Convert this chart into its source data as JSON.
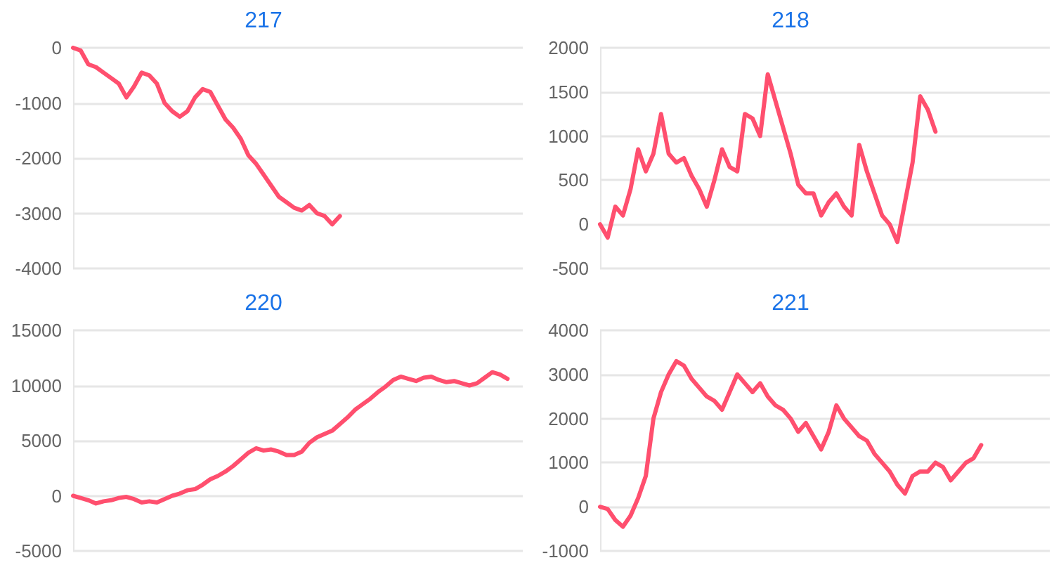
{
  "chart_data": [
    {
      "type": "line",
      "title": "217",
      "categories": [
        null,
        null,
        null,
        null,
        null,
        null,
        null,
        null,
        null,
        null,
        null,
        null,
        null,
        null,
        null,
        null,
        null,
        null,
        null,
        null,
        null,
        null,
        null,
        null,
        null,
        null,
        null,
        null,
        null,
        null,
        null,
        null,
        null,
        null,
        null,
        null,
        null,
        null,
        null,
        null,
        null,
        null,
        null,
        null,
        null,
        null,
        null,
        null,
        null,
        null,
        null,
        null,
        null,
        null,
        null,
        null,
        null,
        null,
        null,
        null
      ],
      "series": [
        {
          "color": "#ff4f6e",
          "values": [
            0,
            -50,
            -300,
            -350,
            -450,
            -550,
            -650,
            -900,
            -700,
            -450,
            -500,
            -650,
            -1000,
            -1150,
            -1250,
            -1150,
            -900,
            -750,
            -800,
            -1050,
            -1300,
            -1450,
            -1650,
            -1950,
            -2100,
            -2300,
            -2500,
            -2700,
            -2800,
            -2900,
            -2950,
            -2850,
            -3000,
            -3050,
            -3200,
            -3050,
            null,
            null,
            null,
            null,
            null,
            null,
            null,
            null,
            null,
            null,
            null,
            null,
            null,
            null,
            null,
            null,
            null,
            null,
            null,
            null,
            null,
            null,
            null,
            null
          ]
        }
      ],
      "ylim": [
        -4000,
        0
      ],
      "yticks": [
        -4000,
        -3000,
        -2000,
        -1000,
        0
      ],
      "grid": "y",
      "marker": "none",
      "line_style": "solid"
    },
    {
      "type": "line",
      "title": "218",
      "categories": [
        null,
        null,
        null,
        null,
        null,
        null,
        null,
        null,
        null,
        null,
        null,
        null,
        null,
        null,
        null,
        null,
        null,
        null,
        null,
        null,
        null,
        null,
        null,
        null,
        null,
        null,
        null,
        null,
        null,
        null,
        null,
        null,
        null,
        null,
        null,
        null,
        null,
        null,
        null,
        null,
        null,
        null,
        null,
        null,
        null,
        null,
        null,
        null,
        null,
        null,
        null,
        null,
        null,
        null,
        null,
        null,
        null,
        null,
        null,
        null
      ],
      "series": [
        {
          "color": "#ff4f6e",
          "values": [
            0,
            -150,
            200,
            100,
            400,
            850,
            600,
            800,
            1250,
            800,
            700,
            750,
            550,
            400,
            200,
            500,
            850,
            650,
            600,
            1250,
            1200,
            1000,
            1700,
            1400,
            1100,
            800,
            450,
            350,
            350,
            100,
            250,
            350,
            200,
            100,
            900,
            600,
            350,
            100,
            0,
            -200,
            250,
            700,
            1450,
            1300,
            1050,
            null,
            null,
            null,
            null,
            null,
            null,
            null,
            null,
            null,
            null,
            null,
            null,
            null,
            null,
            null
          ]
        }
      ],
      "ylim": [
        -500,
        2000
      ],
      "yticks": [
        -500,
        0,
        500,
        1000,
        1500,
        2000
      ],
      "grid": "y",
      "marker": "none",
      "line_style": "solid"
    },
    {
      "type": "line",
      "title": "220",
      "categories": [
        null,
        null,
        null,
        null,
        null,
        null,
        null,
        null,
        null,
        null,
        null,
        null,
        null,
        null,
        null,
        null,
        null,
        null,
        null,
        null,
        null,
        null,
        null,
        null,
        null,
        null,
        null,
        null,
        null,
        null,
        null,
        null,
        null,
        null,
        null,
        null,
        null,
        null,
        null,
        null,
        null,
        null,
        null,
        null,
        null,
        null,
        null,
        null,
        null,
        null,
        null,
        null,
        null,
        null,
        null,
        null,
        null,
        null,
        null,
        null
      ],
      "series": [
        {
          "color": "#ff4f6e",
          "values": [
            0,
            -200,
            -400,
            -700,
            -500,
            -400,
            -200,
            -100,
            -300,
            -600,
            -500,
            -600,
            -300,
            0,
            200,
            500,
            600,
            1000,
            1500,
            1800,
            2200,
            2700,
            3300,
            3900,
            4300,
            4100,
            4200,
            4000,
            3700,
            3700,
            4000,
            4800,
            5300,
            5600,
            5900,
            6500,
            7100,
            7800,
            8300,
            8800,
            9400,
            9900,
            10500,
            10800,
            10600,
            10400,
            10700,
            10800,
            10500,
            10300,
            10400,
            10200,
            10000,
            10200,
            10700,
            11200,
            11000,
            10600,
            null,
            null
          ]
        }
      ],
      "ylim": [
        -5000,
        15000
      ],
      "yticks": [
        -5000,
        0,
        5000,
        10000,
        15000
      ],
      "grid": "y",
      "marker": "none",
      "line_style": "solid"
    },
    {
      "type": "line",
      "title": "221",
      "categories": [
        null,
        null,
        null,
        null,
        null,
        null,
        null,
        null,
        null,
        null,
        null,
        null,
        null,
        null,
        null,
        null,
        null,
        null,
        null,
        null,
        null,
        null,
        null,
        null,
        null,
        null,
        null,
        null,
        null,
        null,
        null,
        null,
        null,
        null,
        null,
        null,
        null,
        null,
        null,
        null,
        null,
        null,
        null,
        null,
        null,
        null,
        null,
        null,
        null,
        null,
        null,
        null,
        null,
        null,
        null,
        null,
        null,
        null,
        null,
        null
      ],
      "series": [
        {
          "color": "#ff4f6e",
          "values": [
            0,
            -50,
            -300,
            -450,
            -200,
            200,
            700,
            2000,
            2600,
            3000,
            3300,
            3200,
            2900,
            2700,
            2500,
            2400,
            2200,
            2600,
            3000,
            2800,
            2600,
            2800,
            2500,
            2300,
            2200,
            2000,
            1700,
            1900,
            1600,
            1300,
            1700,
            2300,
            2000,
            1800,
            1600,
            1500,
            1200,
            1000,
            800,
            500,
            300,
            700,
            800,
            800,
            1000,
            900,
            600,
            800,
            1000,
            1100,
            1400,
            null,
            null,
            null,
            null,
            null,
            null,
            null,
            null,
            null
          ]
        }
      ],
      "ylim": [
        -1000,
        4000
      ],
      "yticks": [
        -1000,
        0,
        1000,
        2000,
        3000,
        4000
      ],
      "grid": "y",
      "marker": "none",
      "line_style": "solid"
    }
  ]
}
